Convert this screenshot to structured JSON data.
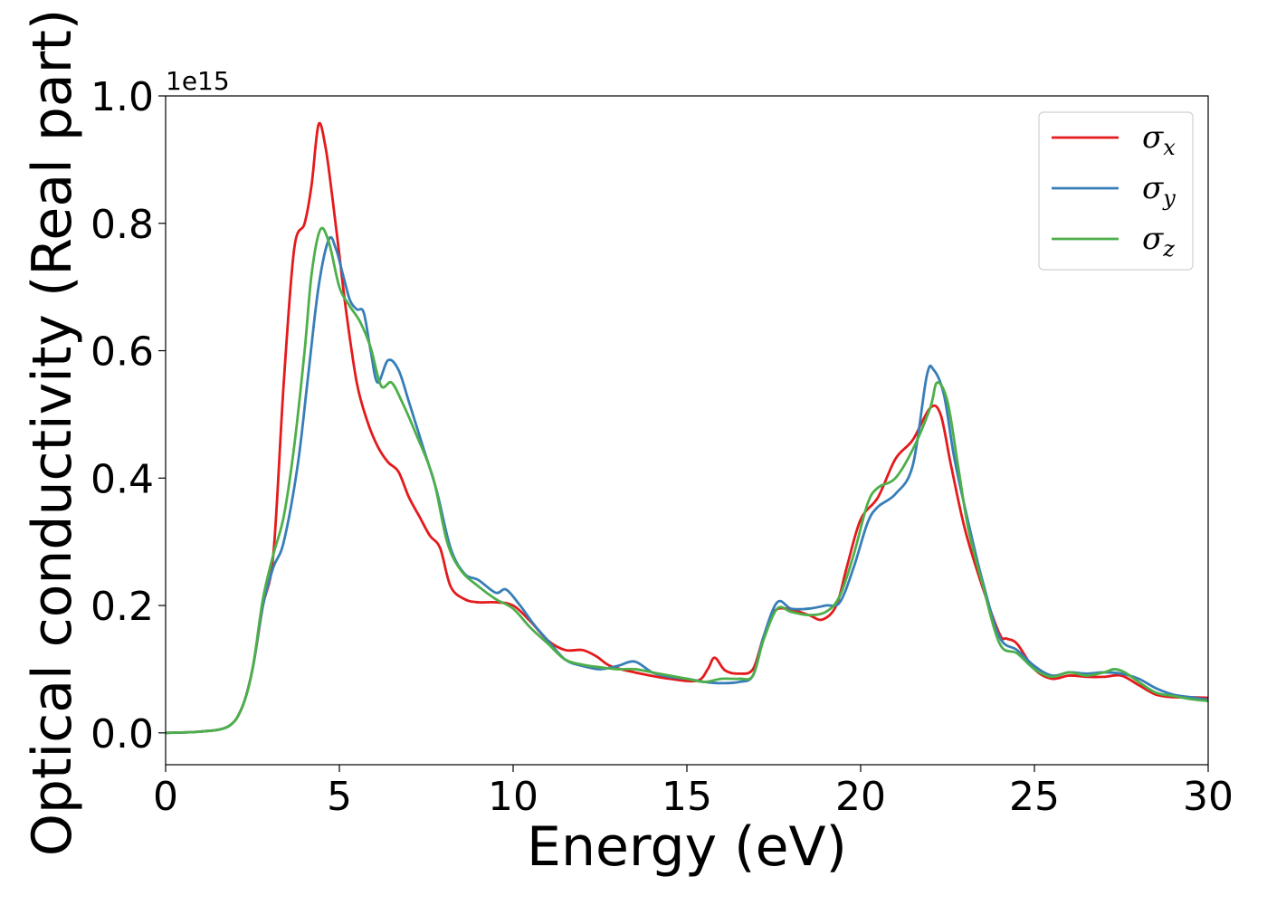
{
  "chart_data": {
    "type": "line",
    "xlabel": "Energy (eV)",
    "ylabel": "Optical conductivity (Real part)",
    "y_offset_label": "1e15",
    "xlim": [
      0,
      30
    ],
    "ylim": [
      -0.05,
      1.0
    ],
    "x_ticks": [
      "0",
      "5",
      "10",
      "15",
      "20",
      "25",
      "30"
    ],
    "y_ticks": [
      "0.0",
      "0.2",
      "0.4",
      "0.6",
      "0.8",
      "1.0"
    ],
    "grid": false,
    "legend_position": "top-right",
    "series": [
      {
        "name": "σx",
        "symbol": "σ",
        "subscript": "x",
        "color": "#e41a1c",
        "points": [
          [
            0,
            0
          ],
          [
            1,
            0.002
          ],
          [
            1.8,
            0.01
          ],
          [
            2.2,
            0.04
          ],
          [
            2.5,
            0.1
          ],
          [
            2.8,
            0.2
          ],
          [
            3.1,
            0.28
          ],
          [
            3.4,
            0.55
          ],
          [
            3.7,
            0.76
          ],
          [
            4.0,
            0.8
          ],
          [
            4.2,
            0.86
          ],
          [
            4.4,
            0.955
          ],
          [
            4.6,
            0.92
          ],
          [
            4.8,
            0.84
          ],
          [
            5.0,
            0.75
          ],
          [
            5.2,
            0.66
          ],
          [
            5.5,
            0.55
          ],
          [
            5.8,
            0.49
          ],
          [
            6.1,
            0.45
          ],
          [
            6.4,
            0.425
          ],
          [
            6.7,
            0.41
          ],
          [
            7.0,
            0.37
          ],
          [
            7.3,
            0.34
          ],
          [
            7.6,
            0.31
          ],
          [
            7.9,
            0.29
          ],
          [
            8.2,
            0.23
          ],
          [
            8.6,
            0.21
          ],
          [
            9.0,
            0.205
          ],
          [
            9.5,
            0.205
          ],
          [
            10.0,
            0.2
          ],
          [
            10.5,
            0.175
          ],
          [
            11.0,
            0.145
          ],
          [
            11.5,
            0.13
          ],
          [
            12.0,
            0.13
          ],
          [
            12.4,
            0.12
          ],
          [
            12.8,
            0.105
          ],
          [
            13.5,
            0.095
          ],
          [
            14.5,
            0.085
          ],
          [
            15.3,
            0.082
          ],
          [
            15.6,
            0.1
          ],
          [
            15.8,
            0.118
          ],
          [
            16.1,
            0.098
          ],
          [
            16.5,
            0.093
          ],
          [
            16.9,
            0.1
          ],
          [
            17.2,
            0.15
          ],
          [
            17.5,
            0.19
          ],
          [
            17.9,
            0.195
          ],
          [
            18.5,
            0.185
          ],
          [
            18.9,
            0.178
          ],
          [
            19.3,
            0.2
          ],
          [
            19.6,
            0.26
          ],
          [
            20.0,
            0.335
          ],
          [
            20.5,
            0.37
          ],
          [
            21.0,
            0.43
          ],
          [
            21.5,
            0.46
          ],
          [
            22.0,
            0.51
          ],
          [
            22.3,
            0.5
          ],
          [
            22.6,
            0.42
          ],
          [
            23.0,
            0.32
          ],
          [
            23.5,
            0.23
          ],
          [
            24.0,
            0.155
          ],
          [
            24.2,
            0.148
          ],
          [
            24.5,
            0.14
          ],
          [
            25.0,
            0.1
          ],
          [
            25.5,
            0.085
          ],
          [
            26.0,
            0.09
          ],
          [
            26.5,
            0.088
          ],
          [
            27.0,
            0.088
          ],
          [
            27.5,
            0.09
          ],
          [
            28.0,
            0.075
          ],
          [
            28.5,
            0.06
          ],
          [
            29.0,
            0.056
          ],
          [
            29.5,
            0.056
          ],
          [
            30.0,
            0.055
          ]
        ]
      },
      {
        "name": "σy",
        "symbol": "σ",
        "subscript": "y",
        "color": "#377eb8",
        "points": [
          [
            0,
            0
          ],
          [
            1,
            0.002
          ],
          [
            1.8,
            0.01
          ],
          [
            2.2,
            0.04
          ],
          [
            2.5,
            0.1
          ],
          [
            2.8,
            0.2
          ],
          [
            3.1,
            0.26
          ],
          [
            3.4,
            0.3
          ],
          [
            3.8,
            0.42
          ],
          [
            4.1,
            0.56
          ],
          [
            4.4,
            0.7
          ],
          [
            4.7,
            0.775
          ],
          [
            4.9,
            0.76
          ],
          [
            5.1,
            0.72
          ],
          [
            5.3,
            0.68
          ],
          [
            5.5,
            0.665
          ],
          [
            5.7,
            0.66
          ],
          [
            5.9,
            0.6
          ],
          [
            6.1,
            0.55
          ],
          [
            6.4,
            0.585
          ],
          [
            6.7,
            0.57
          ],
          [
            7.0,
            0.52
          ],
          [
            7.4,
            0.45
          ],
          [
            7.8,
            0.38
          ],
          [
            8.2,
            0.29
          ],
          [
            8.6,
            0.25
          ],
          [
            9.0,
            0.24
          ],
          [
            9.5,
            0.22
          ],
          [
            9.8,
            0.225
          ],
          [
            10.2,
            0.2
          ],
          [
            10.6,
            0.17
          ],
          [
            11.0,
            0.145
          ],
          [
            11.5,
            0.115
          ],
          [
            12.0,
            0.105
          ],
          [
            12.5,
            0.1
          ],
          [
            13.0,
            0.105
          ],
          [
            13.5,
            0.112
          ],
          [
            14.0,
            0.095
          ],
          [
            14.5,
            0.088
          ],
          [
            15.0,
            0.085
          ],
          [
            15.5,
            0.08
          ],
          [
            16.0,
            0.078
          ],
          [
            16.5,
            0.08
          ],
          [
            16.9,
            0.09
          ],
          [
            17.2,
            0.15
          ],
          [
            17.6,
            0.205
          ],
          [
            18.0,
            0.195
          ],
          [
            18.5,
            0.195
          ],
          [
            19.0,
            0.2
          ],
          [
            19.4,
            0.205
          ],
          [
            19.8,
            0.26
          ],
          [
            20.2,
            0.33
          ],
          [
            20.5,
            0.355
          ],
          [
            21.0,
            0.375
          ],
          [
            21.5,
            0.42
          ],
          [
            21.9,
            0.56
          ],
          [
            22.1,
            0.57
          ],
          [
            22.4,
            0.53
          ],
          [
            22.7,
            0.43
          ],
          [
            23.1,
            0.33
          ],
          [
            23.5,
            0.24
          ],
          [
            24.0,
            0.15
          ],
          [
            24.5,
            0.13
          ],
          [
            25.0,
            0.105
          ],
          [
            25.5,
            0.09
          ],
          [
            26.0,
            0.095
          ],
          [
            26.5,
            0.093
          ],
          [
            27.0,
            0.095
          ],
          [
            27.5,
            0.093
          ],
          [
            28.0,
            0.085
          ],
          [
            28.5,
            0.07
          ],
          [
            29.0,
            0.06
          ],
          [
            29.5,
            0.056
          ],
          [
            30.0,
            0.052
          ]
        ]
      },
      {
        "name": "σz",
        "symbol": "σ",
        "subscript": "z",
        "color": "#4daf4a",
        "points": [
          [
            0,
            0
          ],
          [
            1,
            0.002
          ],
          [
            1.8,
            0.01
          ],
          [
            2.2,
            0.04
          ],
          [
            2.5,
            0.1
          ],
          [
            2.8,
            0.21
          ],
          [
            3.1,
            0.28
          ],
          [
            3.4,
            0.34
          ],
          [
            3.7,
            0.45
          ],
          [
            4.0,
            0.6
          ],
          [
            4.2,
            0.72
          ],
          [
            4.45,
            0.79
          ],
          [
            4.7,
            0.77
          ],
          [
            5.0,
            0.7
          ],
          [
            5.3,
            0.67
          ],
          [
            5.6,
            0.645
          ],
          [
            5.9,
            0.605
          ],
          [
            6.2,
            0.545
          ],
          [
            6.5,
            0.55
          ],
          [
            6.8,
            0.52
          ],
          [
            7.2,
            0.47
          ],
          [
            7.7,
            0.4
          ],
          [
            8.1,
            0.3
          ],
          [
            8.5,
            0.255
          ],
          [
            9.0,
            0.23
          ],
          [
            9.5,
            0.21
          ],
          [
            10.0,
            0.195
          ],
          [
            10.5,
            0.165
          ],
          [
            11.0,
            0.14
          ],
          [
            11.5,
            0.115
          ],
          [
            12.0,
            0.107
          ],
          [
            12.5,
            0.103
          ],
          [
            13.0,
            0.1
          ],
          [
            13.5,
            0.1
          ],
          [
            14.0,
            0.095
          ],
          [
            14.5,
            0.09
          ],
          [
            15.0,
            0.085
          ],
          [
            15.5,
            0.08
          ],
          [
            16.0,
            0.085
          ],
          [
            16.5,
            0.085
          ],
          [
            16.9,
            0.09
          ],
          [
            17.2,
            0.145
          ],
          [
            17.6,
            0.195
          ],
          [
            18.0,
            0.19
          ],
          [
            18.5,
            0.185
          ],
          [
            19.0,
            0.19
          ],
          [
            19.4,
            0.215
          ],
          [
            19.8,
            0.28
          ],
          [
            20.2,
            0.36
          ],
          [
            20.5,
            0.385
          ],
          [
            21.0,
            0.4
          ],
          [
            21.5,
            0.445
          ],
          [
            22.0,
            0.51
          ],
          [
            22.2,
            0.55
          ],
          [
            22.5,
            0.52
          ],
          [
            22.8,
            0.42
          ],
          [
            23.1,
            0.32
          ],
          [
            23.5,
            0.235
          ],
          [
            24.0,
            0.14
          ],
          [
            24.5,
            0.125
          ],
          [
            25.0,
            0.1
          ],
          [
            25.5,
            0.088
          ],
          [
            26.0,
            0.095
          ],
          [
            26.5,
            0.09
          ],
          [
            27.0,
            0.095
          ],
          [
            27.3,
            0.1
          ],
          [
            27.6,
            0.095
          ],
          [
            28.0,
            0.08
          ],
          [
            28.5,
            0.063
          ],
          [
            29.0,
            0.058
          ],
          [
            29.5,
            0.053
          ],
          [
            30.0,
            0.05
          ]
        ]
      }
    ]
  }
}
